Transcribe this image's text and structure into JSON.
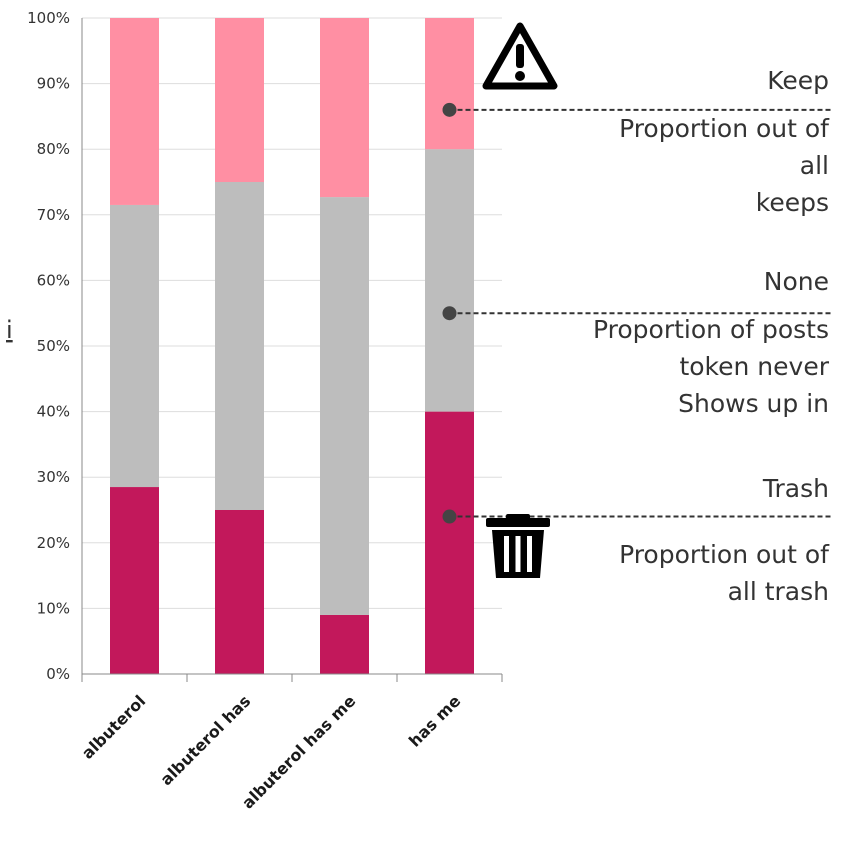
{
  "side_label": "i",
  "chart_data": {
    "type": "bar",
    "stacked": true,
    "categories": [
      "albuterol",
      "albuterol has",
      "albuterol has me",
      "has me"
    ],
    "series": [
      {
        "name": "Trash",
        "color": "#c2185b",
        "values": [
          28.5,
          25.0,
          9.0,
          40.0
        ]
      },
      {
        "name": "None",
        "color": "#bdbdbd",
        "values": [
          43.0,
          50.0,
          63.7,
          40.0
        ]
      },
      {
        "name": "Keep",
        "color": "#ff8fa3",
        "values": [
          28.5,
          25.0,
          27.3,
          20.0
        ]
      }
    ],
    "y_ticks": [
      "0%",
      "10%",
      "20%",
      "30%",
      "40%",
      "50%",
      "60%",
      "70%",
      "80%",
      "90%",
      "100%"
    ],
    "ylim": [
      0,
      100
    ],
    "grid": true
  },
  "annotations": [
    {
      "id": "keep",
      "title": "Keep",
      "lines": [
        "Proportion out of",
        "all",
        "keeps"
      ],
      "pointer_value": 86,
      "icon": "warning-icon"
    },
    {
      "id": "none",
      "title": "None",
      "lines": [
        "Proportion of posts",
        "token never",
        "Shows up in"
      ],
      "pointer_value": 55,
      "icon": ""
    },
    {
      "id": "trash",
      "title": "Trash",
      "lines": [
        "Proportion out of",
        "all trash"
      ],
      "pointer_value": 24,
      "icon": "trash-icon"
    }
  ]
}
